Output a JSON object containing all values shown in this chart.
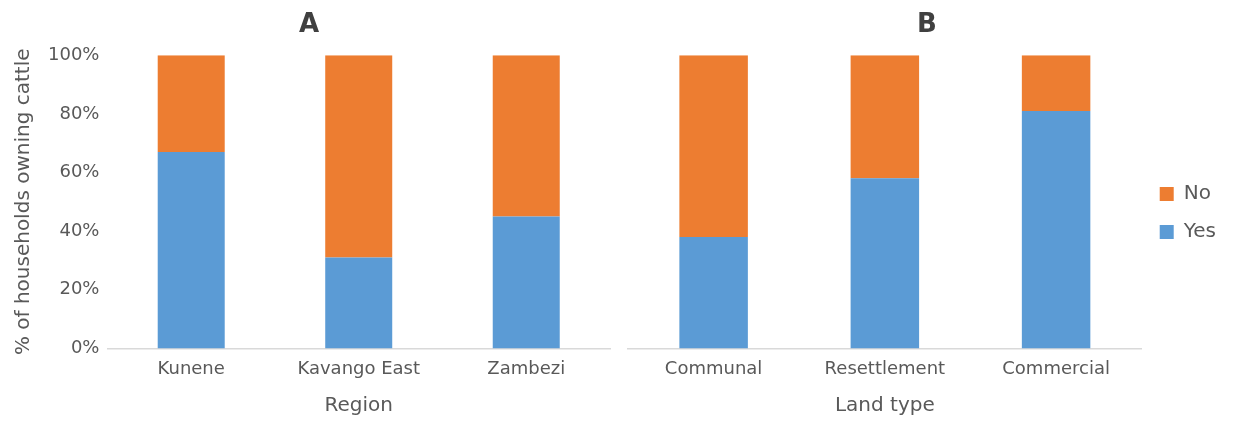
{
  "chart_data": [
    {
      "type": "bar",
      "title": "A",
      "xlabel": "Region",
      "ylabel": "% of households owning cattle",
      "categories": [
        "Kunene",
        "Kavango East",
        "Zambezi"
      ],
      "stacked": true,
      "ylim": [
        0,
        100
      ],
      "yticks": [
        {
          "value": 0,
          "label": "0%"
        },
        {
          "value": 20,
          "label": "20%"
        },
        {
          "value": 40,
          "label": "40%"
        },
        {
          "value": 60,
          "label": "60%"
        },
        {
          "value": 80,
          "label": "80%"
        },
        {
          "value": 100,
          "label": "100%"
        }
      ],
      "grid": false,
      "legend": false,
      "series": [
        {
          "color": "#5b9bd5",
          "values": [
            67,
            31,
            45
          ]
        },
        {
          "color": "#ed7d31",
          "values": [
            33,
            69,
            55
          ]
        }
      ]
    },
    {
      "type": "bar",
      "title": "B",
      "xlabel": "Land type",
      "categories": [
        "Communal",
        "Resettlement",
        "Commercial"
      ],
      "stacked": true,
      "ylim": [
        0,
        100
      ],
      "tick_labels": "x",
      "grid": false,
      "legend": "right",
      "series": [
        {
          "name": "Yes",
          "color": "#5b9bd5",
          "values": [
            38,
            58,
            81
          ]
        },
        {
          "name": "No",
          "color": "#ed7d31",
          "values": [
            62,
            42,
            19
          ]
        }
      ]
    }
  ]
}
